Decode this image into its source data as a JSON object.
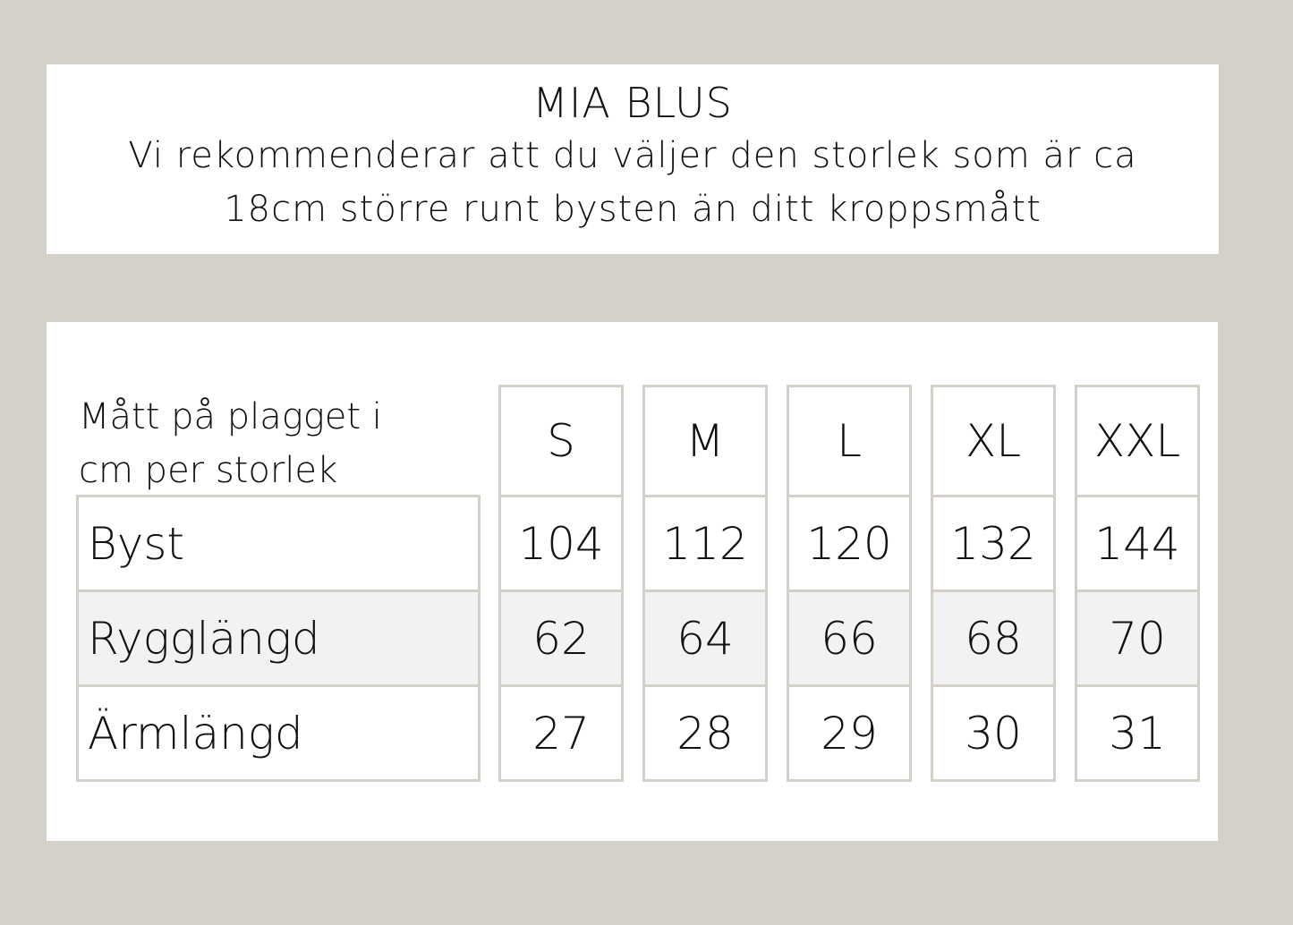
{
  "title": "MIA BLUS",
  "subtitle": "Vi rekommenderar att du väljer den storlek som är ca 18cm större runt bysten än ditt kroppsmått",
  "table": {
    "caption": "Mått på plagget i cm per storlek",
    "rows": [
      "Byst",
      "Rygglängd",
      "Ärmlängd"
    ],
    "sizes": [
      {
        "label": "S",
        "values": [
          "104",
          "62",
          "27"
        ]
      },
      {
        "label": "M",
        "values": [
          "112",
          "64",
          "28"
        ]
      },
      {
        "label": "L",
        "values": [
          "120",
          "66",
          "29"
        ]
      },
      {
        "label": "XL",
        "values": [
          "132",
          "68",
          "30"
        ]
      },
      {
        "label": "XXL",
        "values": [
          "144",
          "70",
          "31"
        ]
      }
    ]
  },
  "colors": {
    "background": "#d4d1ca",
    "border": "#d3d0c9",
    "shaded_row": "#f2f2f2"
  }
}
